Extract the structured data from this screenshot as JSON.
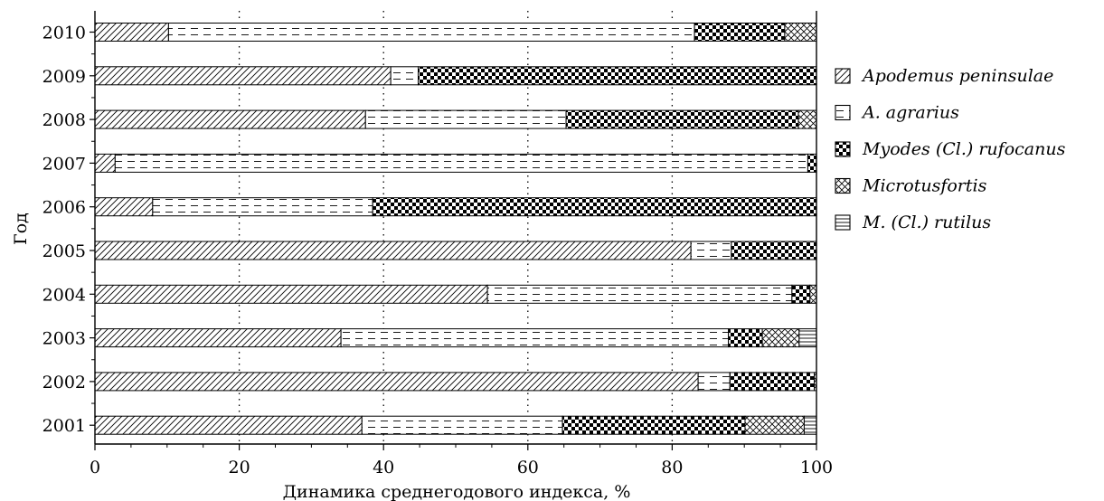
{
  "chart_data": {
    "type": "bar",
    "orientation": "horizontal",
    "stacked": true,
    "xlabel": "Динамика среднегодового индекса, %",
    "ylabel": "Год",
    "xlim": [
      0,
      100
    ],
    "xticks": [
      "0",
      "20",
      "40",
      "60",
      "80",
      "100"
    ],
    "grid": "vertical dotted",
    "legend_position": "right",
    "categories": [
      "2010",
      "2009",
      "2008",
      "2007",
      "2006",
      "2005",
      "2004",
      "2003",
      "2002",
      "2001"
    ],
    "series": [
      {
        "name": "Apodemus peninsulae",
        "pattern": "diagonal-hatch",
        "values": [
          10.2,
          41,
          37.5,
          2.8,
          8,
          82.6,
          54.4,
          34.1,
          83.6,
          37
        ]
      },
      {
        "name": "A. agrarius",
        "pattern": "dashed-lines",
        "values": [
          72.9,
          3.8,
          27.8,
          96,
          30.5,
          5.6,
          42.2,
          53.7,
          4.4,
          27.8
        ]
      },
      {
        "name": "Myodes (Cl.) rufocanus",
        "pattern": "checkerboard",
        "values": [
          12.5,
          55.2,
          32.2,
          1.2,
          61.5,
          11.8,
          2.5,
          4.7,
          11.7,
          25.3
        ]
      },
      {
        "name": "Microtusfortis",
        "pattern": "crosshatch",
        "values": [
          4.4,
          0,
          2.5,
          0,
          0,
          0,
          0.9,
          5.1,
          0.3,
          8.2
        ]
      },
      {
        "name": "M. (Cl.) rutilus",
        "pattern": "horizontal-lines",
        "values": [
          0,
          0,
          0,
          0,
          0,
          0,
          0,
          2.4,
          0,
          1.7
        ]
      }
    ]
  }
}
